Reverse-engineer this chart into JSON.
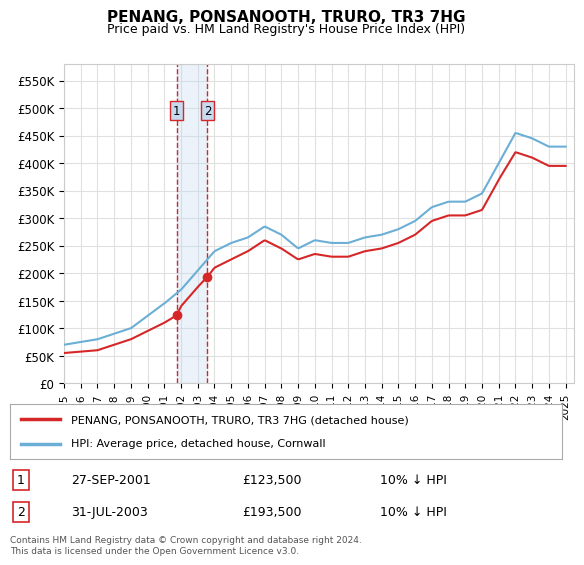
{
  "title": "PENANG, PONSANOOTH, TRURO, TR3 7HG",
  "subtitle": "Price paid vs. HM Land Registry's House Price Index (HPI)",
  "ylabel_ticks": [
    "£0",
    "£50K",
    "£100K",
    "£150K",
    "£200K",
    "£250K",
    "£300K",
    "£350K",
    "£400K",
    "£450K",
    "£500K",
    "£550K"
  ],
  "ytick_values": [
    0,
    50000,
    100000,
    150000,
    200000,
    250000,
    300000,
    350000,
    400000,
    450000,
    500000,
    550000
  ],
  "ylim": [
    0,
    580000
  ],
  "legend_line1": "PENANG, PONSANOOTH, TRURO, TR3 7HG (detached house)",
  "legend_line2": "HPI: Average price, detached house, Cornwall",
  "transaction1_label": "1",
  "transaction1_date": "27-SEP-2001",
  "transaction1_price": "£123,500",
  "transaction1_hpi": "10% ↓ HPI",
  "transaction2_label": "2",
  "transaction2_date": "31-JUL-2003",
  "transaction2_price": "£193,500",
  "transaction2_hpi": "10% ↓ HPI",
  "footer": "Contains HM Land Registry data © Crown copyright and database right 2024.\nThis data is licensed under the Open Government Licence v3.0.",
  "hpi_color": "#6baed6",
  "price_color": "#d62728",
  "vline_color": "#d62728",
  "shade_color": "#c6dbef",
  "background_color": "#ffffff",
  "grid_color": "#e0e0e0",
  "transaction1_x": 2001.74,
  "transaction2_x": 2003.58,
  "transaction1_y": 123500,
  "transaction2_y": 193500,
  "xmin": 1995,
  "xmax": 2025.5
}
